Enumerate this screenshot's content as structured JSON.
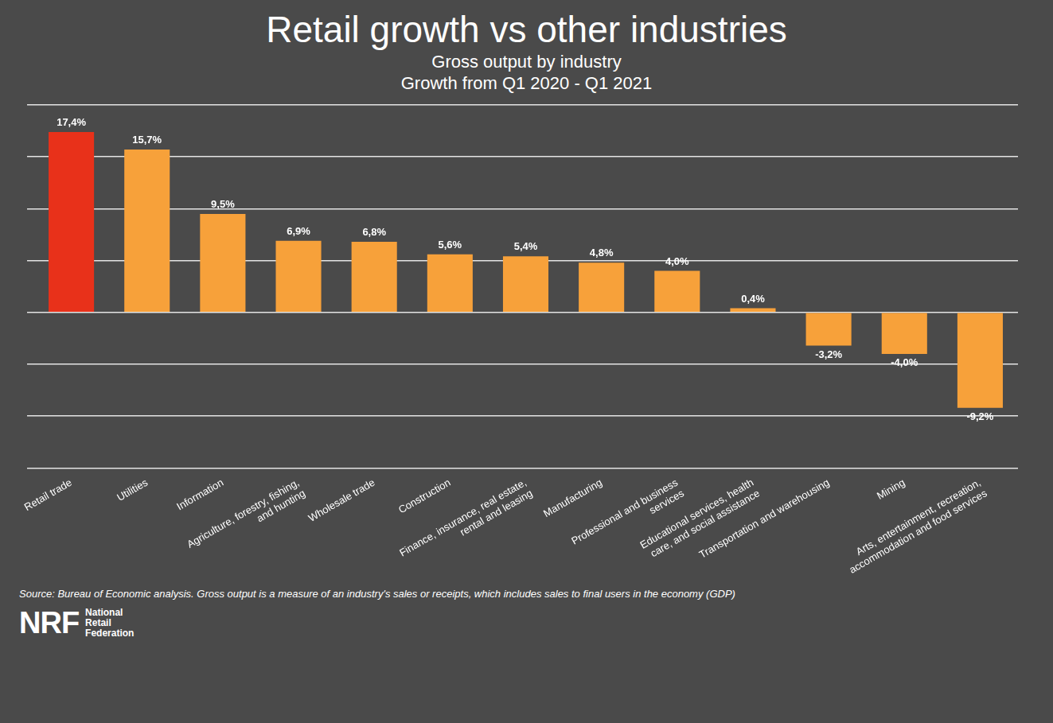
{
  "chart_data": {
    "type": "bar",
    "title": "Retail growth vs other industries",
    "subtitle": [
      "Gross output by industry",
      "Growth from Q1 2020 - Q1 2021"
    ],
    "categories": [
      "Retail trade",
      "Utilities",
      "Information",
      "Agriculture, forestry, fishing, and hunting",
      "Wholesale trade",
      "Construction",
      "Finance, insurance, real estate, rental and leasing",
      "Manufacturing",
      "Professional and business services",
      "Educational services, health care, and social assistance",
      "Transportation and warehousing",
      "Mining",
      "Arts, entertainment, recreation, accommodation and food services"
    ],
    "values": [
      17.4,
      15.7,
      9.5,
      6.9,
      6.8,
      5.6,
      5.4,
      4.8,
      4.0,
      0.4,
      -3.2,
      -4.0,
      -9.2
    ],
    "value_labels": [
      "17,4%",
      "15,7%",
      "9,5%",
      "6,9%",
      "6,8%",
      "5,6%",
      "5,4%",
      "4,8%",
      "4,0%",
      "0,4%",
      "-3,2%",
      "-4,0%",
      "-9,2%"
    ],
    "colors": [
      "#e8311a",
      "#f7a13a",
      "#f7a13a",
      "#f7a13a",
      "#f7a13a",
      "#f7a13a",
      "#f7a13a",
      "#f7a13a",
      "#f7a13a",
      "#f7a13a",
      "#f7a13a",
      "#f7a13a",
      "#f7a13a"
    ],
    "data_labels": true,
    "ylim": [
      -15,
      20
    ],
    "yticks": [
      -15,
      -10,
      -5,
      0,
      5,
      10,
      15,
      20
    ],
    "grid": true,
    "tick_labels": "x",
    "source": "Source: Bureau of Economic analysis. Gross output is a measure of an industry's sales or receipts, which includes sales to final users in the economy (GDP)",
    "logo": "NRF",
    "logo_text": "National Retail Federation"
  }
}
